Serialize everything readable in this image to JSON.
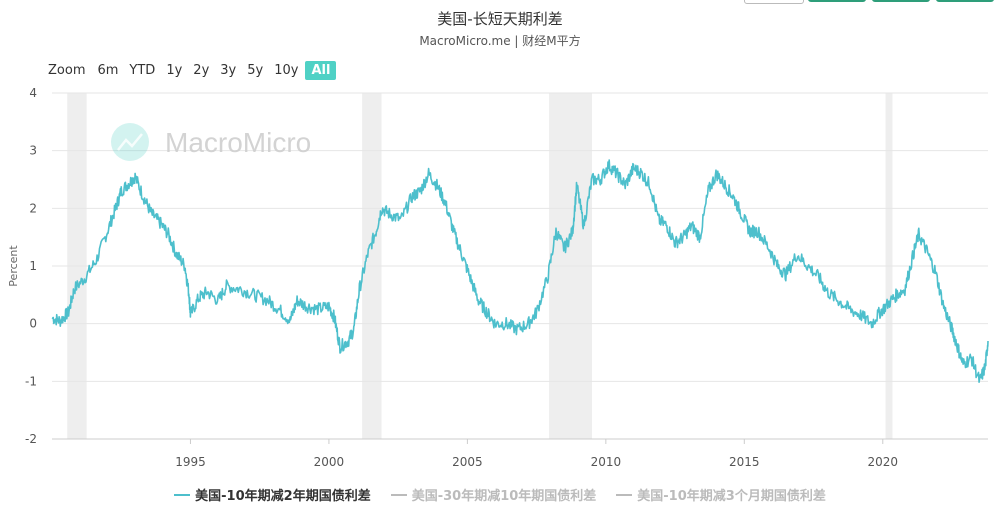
{
  "title": "美国-长短天期利差",
  "subtitle": "MacroMicro.me | 财经M平方",
  "watermark": "MacroMicro",
  "zoom": {
    "label": "Zoom",
    "buttons": [
      "6m",
      "YTD",
      "1y",
      "2y",
      "3y",
      "5y",
      "10y",
      "All"
    ],
    "active": "All"
  },
  "colors": {
    "series": "#4dbfcc",
    "inactive": "#bbbbbb",
    "recession": "#eeeeee",
    "accent": "#4fd1c5",
    "grid": "#e6e6e6"
  },
  "chart_data": {
    "type": "line",
    "ylabel": "Percent",
    "ylim": [
      -2,
      4
    ],
    "yticks": [
      4,
      3,
      2,
      1,
      0,
      -1,
      -2
    ],
    "xlim": [
      1990.0,
      2023.8
    ],
    "xticks": [
      1995,
      2000,
      2005,
      2010,
      2015,
      2020
    ],
    "grid": true,
    "legend_position": "bottom",
    "recessions": [
      [
        1990.55,
        1991.25
      ],
      [
        2001.2,
        2001.9
      ],
      [
        2007.95,
        2009.5
      ],
      [
        2020.1,
        2020.35
      ]
    ],
    "series": [
      {
        "name": "美国-10年期减2年期国债利差",
        "visible": true,
        "points": [
          [
            1990.0,
            0.1
          ],
          [
            1990.3,
            0.05
          ],
          [
            1990.6,
            0.2
          ],
          [
            1990.8,
            0.6
          ],
          [
            1991.2,
            0.8
          ],
          [
            1991.6,
            1.1
          ],
          [
            1992.0,
            1.6
          ],
          [
            1992.3,
            2.0
          ],
          [
            1992.5,
            2.3
          ],
          [
            1992.8,
            2.45
          ],
          [
            1993.0,
            2.55
          ],
          [
            1993.3,
            2.2
          ],
          [
            1993.6,
            1.9
          ],
          [
            1993.9,
            1.75
          ],
          [
            1994.2,
            1.55
          ],
          [
            1994.5,
            1.2
          ],
          [
            1994.8,
            1.0
          ],
          [
            1994.95,
            0.5
          ],
          [
            1995.0,
            0.15
          ],
          [
            1995.3,
            0.45
          ],
          [
            1995.6,
            0.55
          ],
          [
            1996.0,
            0.4
          ],
          [
            1996.3,
            0.65
          ],
          [
            1996.8,
            0.6
          ],
          [
            1997.3,
            0.5
          ],
          [
            1997.8,
            0.4
          ],
          [
            1998.2,
            0.25
          ],
          [
            1998.6,
            0.05
          ],
          [
            1998.85,
            0.4
          ],
          [
            1999.2,
            0.3
          ],
          [
            1999.6,
            0.25
          ],
          [
            2000.0,
            0.3
          ],
          [
            2000.2,
            0.1
          ],
          [
            2000.4,
            -0.4
          ],
          [
            2000.7,
            -0.3
          ],
          [
            2000.9,
            -0.1
          ],
          [
            2001.1,
            0.6
          ],
          [
            2001.4,
            1.2
          ],
          [
            2001.7,
            1.6
          ],
          [
            2001.9,
            2.0
          ],
          [
            2002.2,
            1.9
          ],
          [
            2002.6,
            1.8
          ],
          [
            2003.0,
            2.2
          ],
          [
            2003.3,
            2.3
          ],
          [
            2003.6,
            2.6
          ],
          [
            2003.9,
            2.4
          ],
          [
            2004.2,
            2.1
          ],
          [
            2004.5,
            1.6
          ],
          [
            2004.8,
            1.2
          ],
          [
            2005.1,
            0.8
          ],
          [
            2005.4,
            0.4
          ],
          [
            2005.7,
            0.2
          ],
          [
            2006.0,
            0.0
          ],
          [
            2006.4,
            0.0
          ],
          [
            2006.8,
            -0.1
          ],
          [
            2007.2,
            0.0
          ],
          [
            2007.5,
            0.2
          ],
          [
            2007.9,
            0.8
          ],
          [
            2008.2,
            1.6
          ],
          [
            2008.5,
            1.3
          ],
          [
            2008.8,
            1.6
          ],
          [
            2008.95,
            2.4
          ],
          [
            2009.2,
            1.7
          ],
          [
            2009.5,
            2.5
          ],
          [
            2009.8,
            2.5
          ],
          [
            2010.1,
            2.75
          ],
          [
            2010.4,
            2.6
          ],
          [
            2010.7,
            2.4
          ],
          [
            2011.0,
            2.7
          ],
          [
            2011.3,
            2.6
          ],
          [
            2011.6,
            2.4
          ],
          [
            2011.9,
            1.8
          ],
          [
            2012.2,
            1.7
          ],
          [
            2012.5,
            1.4
          ],
          [
            2012.8,
            1.5
          ],
          [
            2013.1,
            1.7
          ],
          [
            2013.4,
            1.5
          ],
          [
            2013.7,
            2.3
          ],
          [
            2014.0,
            2.6
          ],
          [
            2014.3,
            2.4
          ],
          [
            2014.6,
            2.2
          ],
          [
            2014.9,
            1.9
          ],
          [
            2015.2,
            1.6
          ],
          [
            2015.5,
            1.6
          ],
          [
            2015.9,
            1.3
          ],
          [
            2016.2,
            1.0
          ],
          [
            2016.5,
            0.85
          ],
          [
            2016.9,
            1.2
          ],
          [
            2017.3,
            1.0
          ],
          [
            2017.7,
            0.8
          ],
          [
            2018.0,
            0.55
          ],
          [
            2018.4,
            0.4
          ],
          [
            2018.8,
            0.25
          ],
          [
            2019.2,
            0.15
          ],
          [
            2019.6,
            0.0
          ],
          [
            2019.9,
            0.2
          ],
          [
            2020.2,
            0.35
          ],
          [
            2020.5,
            0.5
          ],
          [
            2020.8,
            0.6
          ],
          [
            2021.1,
            1.2
          ],
          [
            2021.3,
            1.55
          ],
          [
            2021.6,
            1.25
          ],
          [
            2021.9,
            0.9
          ],
          [
            2022.2,
            0.3
          ],
          [
            2022.5,
            -0.1
          ],
          [
            2022.7,
            -0.4
          ],
          [
            2022.9,
            -0.7
          ],
          [
            2023.2,
            -0.6
          ],
          [
            2023.5,
            -1.0
          ],
          [
            2023.7,
            -0.75
          ],
          [
            2023.8,
            -0.3
          ]
        ]
      },
      {
        "name": "美国-30年期减10年期国债利差",
        "visible": false
      },
      {
        "name": "美国-10年期减3个月期国债利差",
        "visible": false
      }
    ]
  }
}
